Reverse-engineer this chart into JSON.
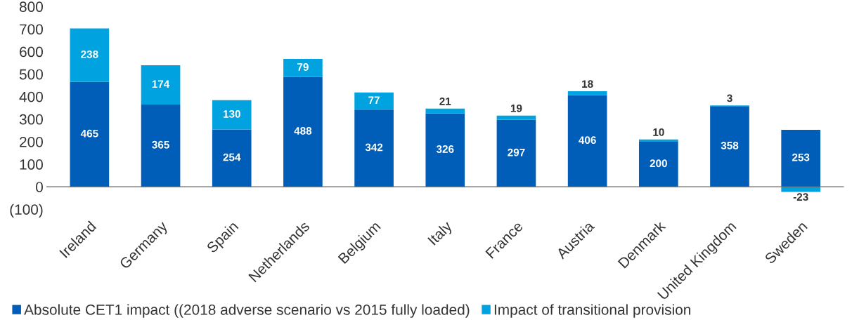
{
  "chart_data": {
    "type": "bar",
    "stacked": true,
    "categories": [
      "Ireland",
      "Germany",
      "Spain",
      "Netherlands",
      "Belgium",
      "Italy",
      "France",
      "Austria",
      "Denmark",
      "United Kingdom",
      "Sweden"
    ],
    "series": [
      {
        "name": "Absolute CET1 impact ((2018 adverse scenario vs 2015 fully loaded)",
        "color": "#005eb8",
        "values": [
          465,
          365,
          254,
          488,
          342,
          326,
          297,
          406,
          200,
          358,
          253
        ]
      },
      {
        "name": "Impact of transitional provision",
        "color": "#00a3e0",
        "values": [
          238,
          174,
          130,
          79,
          77,
          21,
          19,
          18,
          10,
          3,
          -23
        ]
      }
    ],
    "ylim": [
      -100,
      800
    ],
    "yticks": [
      {
        "value": -100,
        "label": "(100)"
      },
      0,
      100,
      200,
      300,
      400,
      500,
      600,
      700,
      800
    ],
    "data_labels": true,
    "legend": "bottom",
    "grid": false
  }
}
